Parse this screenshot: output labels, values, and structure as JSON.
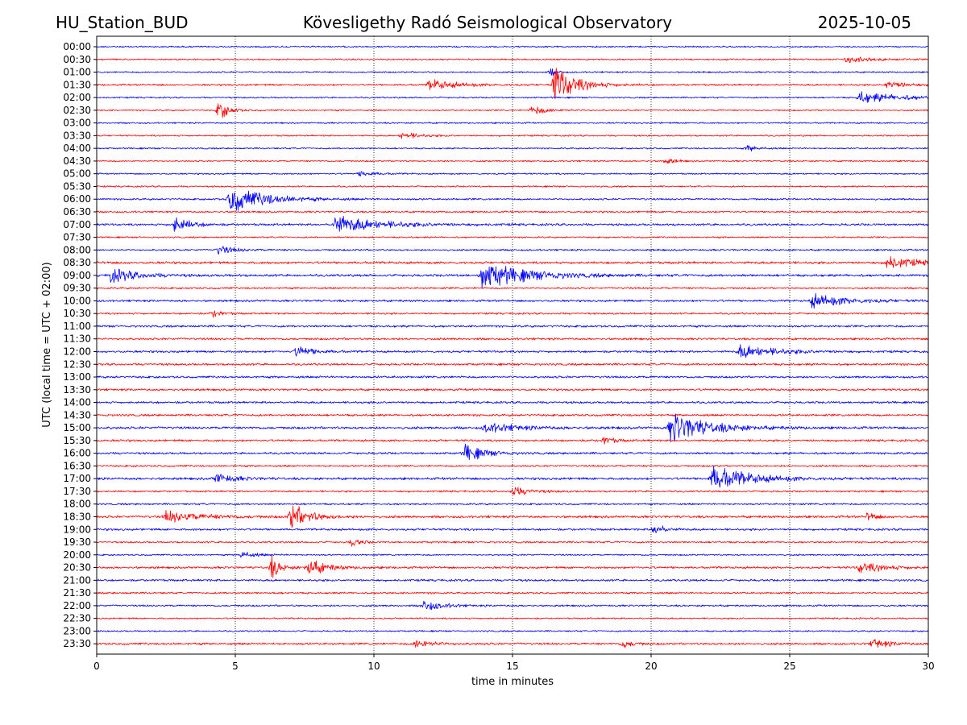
{
  "header": {
    "station": "HU_Station_BUD",
    "observatory": "Kövesligethy Radó Seismological Observatory",
    "date": "2025-10-05"
  },
  "chart_data": {
    "type": "line",
    "title": "Kövesligethy Radó Seismological Observatory",
    "xlabel": "time in minutes",
    "ylabel": "UTC (local time = UTC + 02:00)",
    "xlim": [
      0,
      30
    ],
    "xticks": [
      0,
      5,
      10,
      15,
      20,
      25,
      30
    ],
    "xtick_labels": [
      "0",
      "5",
      "10",
      "15",
      "20",
      "25",
      "30"
    ],
    "grid": "vertical dotted lines at x ticks",
    "trace_colors": [
      "#0000ff",
      "#ff0000"
    ],
    "rows": [
      {
        "label": "00:00",
        "noise": 0.5,
        "events": []
      },
      {
        "label": "00:30",
        "noise": 0.5,
        "events": [
          {
            "t": 27.0,
            "amp": 0.8,
            "dur": 1.2
          }
        ]
      },
      {
        "label": "01:00",
        "noise": 0.5,
        "events": [
          {
            "t": 16.4,
            "amp": 1.0,
            "dur": 0.3
          }
        ]
      },
      {
        "label": "01:30",
        "noise": 0.6,
        "events": [
          {
            "t": 12.0,
            "amp": 1.2,
            "dur": 1.5
          },
          {
            "t": 16.5,
            "amp": 4.5,
            "dur": 1.2
          },
          {
            "t": 28.5,
            "amp": 1.0,
            "dur": 1.0
          }
        ]
      },
      {
        "label": "02:00",
        "noise": 0.5,
        "events": [
          {
            "t": 27.5,
            "amp": 1.2,
            "dur": 2.5
          }
        ]
      },
      {
        "label": "02:30",
        "noise": 0.5,
        "events": [
          {
            "t": 4.4,
            "amp": 2.5,
            "dur": 0.5
          },
          {
            "t": 15.7,
            "amp": 1.0,
            "dur": 1.0
          }
        ]
      },
      {
        "label": "03:00",
        "noise": 0.5,
        "events": []
      },
      {
        "label": "03:30",
        "noise": 0.5,
        "events": [
          {
            "t": 11.0,
            "amp": 0.8,
            "dur": 1.0
          }
        ]
      },
      {
        "label": "04:00",
        "noise": 0.5,
        "events": [
          {
            "t": 23.5,
            "amp": 0.8,
            "dur": 0.5
          }
        ]
      },
      {
        "label": "04:30",
        "noise": 0.5,
        "events": [
          {
            "t": 20.5,
            "amp": 0.8,
            "dur": 0.5
          }
        ]
      },
      {
        "label": "05:00",
        "noise": 0.5,
        "events": [
          {
            "t": 9.5,
            "amp": 0.7,
            "dur": 0.8
          }
        ]
      },
      {
        "label": "05:30",
        "noise": 0.5,
        "events": []
      },
      {
        "label": "06:00",
        "noise": 0.6,
        "events": [
          {
            "t": 4.8,
            "amp": 3.0,
            "dur": 2.0
          }
        ]
      },
      {
        "label": "06:30",
        "noise": 0.6,
        "events": []
      },
      {
        "label": "07:00",
        "noise": 0.7,
        "events": [
          {
            "t": 2.8,
            "amp": 2.0,
            "dur": 0.8
          },
          {
            "t": 8.6,
            "amp": 2.0,
            "dur": 2.5
          }
        ]
      },
      {
        "label": "07:30",
        "noise": 0.5,
        "events": []
      },
      {
        "label": "08:00",
        "noise": 0.6,
        "events": [
          {
            "t": 4.4,
            "amp": 1.0,
            "dur": 0.8
          }
        ]
      },
      {
        "label": "08:30",
        "noise": 0.8,
        "events": [
          {
            "t": 28.5,
            "amp": 1.5,
            "dur": 1.5
          }
        ]
      },
      {
        "label": "09:00",
        "noise": 0.8,
        "events": [
          {
            "t": 0.5,
            "amp": 1.5,
            "dur": 1.5
          },
          {
            "t": 13.9,
            "amp": 3.0,
            "dur": 2.5
          }
        ]
      },
      {
        "label": "09:30",
        "noise": 0.6,
        "events": []
      },
      {
        "label": "10:00",
        "noise": 0.7,
        "events": [
          {
            "t": 25.8,
            "amp": 1.5,
            "dur": 2.0
          }
        ]
      },
      {
        "label": "10:30",
        "noise": 0.6,
        "events": [
          {
            "t": 4.2,
            "amp": 0.8,
            "dur": 0.5
          }
        ]
      },
      {
        "label": "11:00",
        "noise": 0.7,
        "events": []
      },
      {
        "label": "11:30",
        "noise": 0.7,
        "events": []
      },
      {
        "label": "12:00",
        "noise": 0.7,
        "events": [
          {
            "t": 7.2,
            "amp": 1.2,
            "dur": 1.0
          },
          {
            "t": 23.2,
            "amp": 1.5,
            "dur": 2.0
          }
        ]
      },
      {
        "label": "12:30",
        "noise": 0.7,
        "events": []
      },
      {
        "label": "13:00",
        "noise": 0.7,
        "events": []
      },
      {
        "label": "13:30",
        "noise": 0.7,
        "events": []
      },
      {
        "label": "14:00",
        "noise": 0.7,
        "events": []
      },
      {
        "label": "14:30",
        "noise": 0.7,
        "events": []
      },
      {
        "label": "15:00",
        "noise": 0.8,
        "events": [
          {
            "t": 14.0,
            "amp": 1.0,
            "dur": 2.0
          },
          {
            "t": 20.7,
            "amp": 3.5,
            "dur": 2.0
          }
        ]
      },
      {
        "label": "15:30",
        "noise": 0.7,
        "events": [
          {
            "t": 18.3,
            "amp": 1.0,
            "dur": 0.5
          }
        ]
      },
      {
        "label": "16:00",
        "noise": 0.7,
        "events": [
          {
            "t": 13.3,
            "amp": 2.0,
            "dur": 1.0
          }
        ]
      },
      {
        "label": "16:30",
        "noise": 0.6,
        "events": []
      },
      {
        "label": "17:00",
        "noise": 0.8,
        "events": [
          {
            "t": 4.3,
            "amp": 1.2,
            "dur": 1.0
          },
          {
            "t": 22.2,
            "amp": 3.0,
            "dur": 2.0
          }
        ]
      },
      {
        "label": "17:30",
        "noise": 0.6,
        "events": [
          {
            "t": 15.0,
            "amp": 1.0,
            "dur": 1.0
          }
        ]
      },
      {
        "label": "18:00",
        "noise": 0.6,
        "events": []
      },
      {
        "label": "18:30",
        "noise": 0.8,
        "events": [
          {
            "t": 2.5,
            "amp": 1.2,
            "dur": 2.0
          },
          {
            "t": 7.0,
            "amp": 3.0,
            "dur": 1.0
          },
          {
            "t": 27.8,
            "amp": 1.0,
            "dur": 0.5
          }
        ]
      },
      {
        "label": "19:00",
        "noise": 0.7,
        "events": [
          {
            "t": 20.1,
            "amp": 1.5,
            "dur": 0.5
          }
        ]
      },
      {
        "label": "19:30",
        "noise": 0.6,
        "events": [
          {
            "t": 9.2,
            "amp": 1.0,
            "dur": 0.5
          }
        ]
      },
      {
        "label": "20:00",
        "noise": 0.5,
        "events": [
          {
            "t": 5.2,
            "amp": 0.8,
            "dur": 0.8
          }
        ]
      },
      {
        "label": "20:30",
        "noise": 0.7,
        "events": [
          {
            "t": 6.3,
            "amp": 2.5,
            "dur": 0.5
          },
          {
            "t": 7.6,
            "amp": 2.0,
            "dur": 1.0
          },
          {
            "t": 27.5,
            "amp": 1.2,
            "dur": 1.5
          }
        ]
      },
      {
        "label": "21:00",
        "noise": 0.7,
        "events": []
      },
      {
        "label": "21:30",
        "noise": 0.6,
        "events": []
      },
      {
        "label": "22:00",
        "noise": 0.6,
        "events": [
          {
            "t": 11.8,
            "amp": 1.2,
            "dur": 1.0
          }
        ]
      },
      {
        "label": "22:30",
        "noise": 0.5,
        "events": []
      },
      {
        "label": "23:00",
        "noise": 0.5,
        "events": []
      },
      {
        "label": "23:30",
        "noise": 0.7,
        "events": [
          {
            "t": 11.5,
            "amp": 1.0,
            "dur": 1.0
          },
          {
            "t": 19.0,
            "amp": 1.0,
            "dur": 0.5
          },
          {
            "t": 28.0,
            "amp": 1.2,
            "dur": 0.8
          }
        ]
      }
    ]
  }
}
